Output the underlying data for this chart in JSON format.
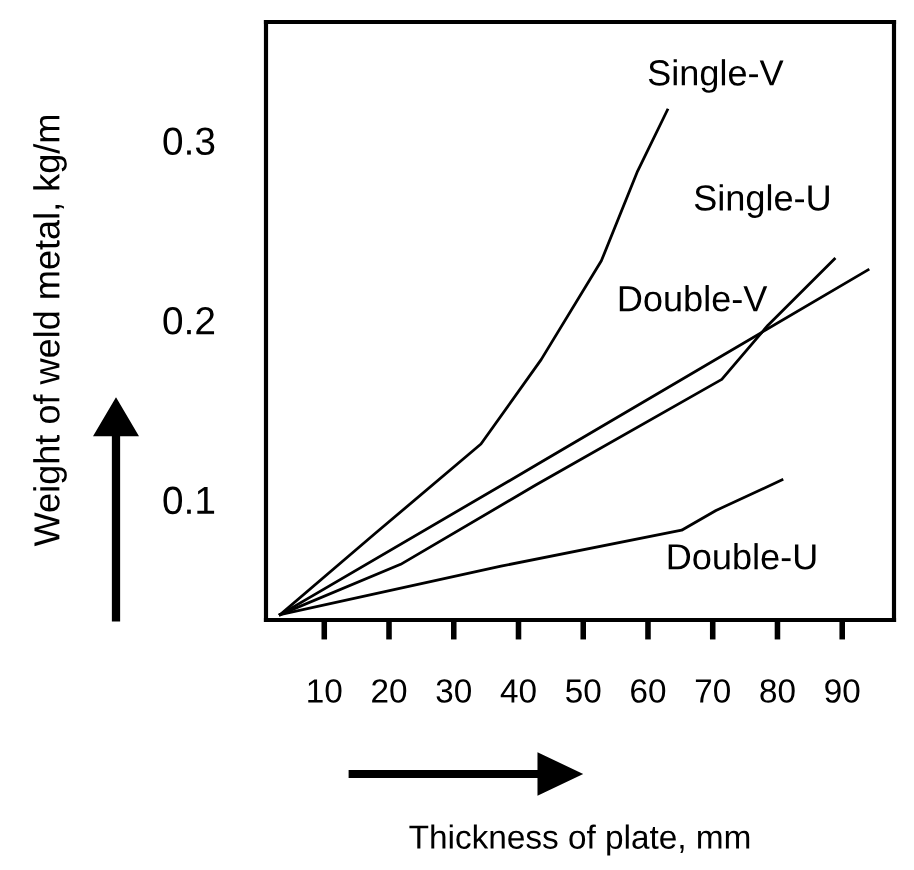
{
  "chart_data": {
    "type": "line",
    "xlabel": "Thickness of plate, mm",
    "ylabel": "Weight of weld metal, kg/m",
    "xlim": [
      1,
      98
    ],
    "ylim": [
      0.033,
      0.366
    ],
    "xticks": [
      10,
      20,
      30,
      40,
      50,
      60,
      70,
      80,
      90
    ],
    "yticks": [
      0.1,
      0.2,
      0.3
    ],
    "grid": false,
    "legend": false,
    "marker": "none",
    "line_style": "solid",
    "series": [
      {
        "name": "Single-V",
        "color": "#000000",
        "x": [
          3.2,
          17.8,
          34.2,
          43.5,
          52.8,
          58.4,
          63.0
        ],
        "values": [
          0.036,
          0.081,
          0.131,
          0.178,
          0.233,
          0.283,
          0.317
        ]
      },
      {
        "name": "Single-U",
        "color": "#000000",
        "x": [
          3.2,
          21.8,
          42.6,
          71.4,
          78.5,
          88.8
        ],
        "values": [
          0.036,
          0.064,
          0.108,
          0.167,
          0.197,
          0.234
        ]
      },
      {
        "name": "Double-V",
        "color": "#000000",
        "x": [
          3.2,
          42.6,
          94.0
        ],
        "values": [
          0.036,
          0.119,
          0.228
        ]
      },
      {
        "name": "Double-U",
        "color": "#000000",
        "x": [
          3.2,
          37.3,
          65.2,
          70.5,
          80.7
        ],
        "values": [
          0.036,
          0.063,
          0.083,
          0.094,
          0.111
        ]
      }
    ]
  }
}
